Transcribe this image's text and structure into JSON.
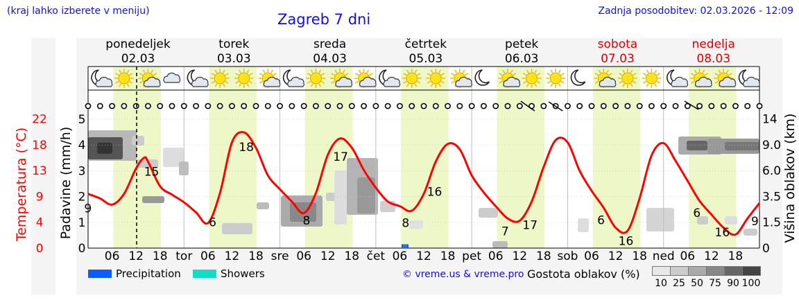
{
  "header": {
    "note": "(kraj lahko izberete v meniju)",
    "title": "Zagreb 7 dni",
    "updated": "Zadnja posodobitev: 02.03.2026 - 12:09"
  },
  "colors": {
    "temperature": "#ff0000",
    "weekday_label": "#000000",
    "weekend_label": "#e00000",
    "daylight_band": "#eef7c8",
    "precipitation": "#0a5cff",
    "showers": "#15dcc4",
    "link_blue": "#1010e0"
  },
  "legend": {
    "items": [
      {
        "label": "Precipitation",
        "color": "#0a5cff"
      },
      {
        "label": "Showers",
        "color": "#15dcc4"
      }
    ],
    "credit": "© vreme.us & vreme.pro",
    "density_label": "Gostota oblakov (%)",
    "density_scale": [
      {
        "label": "10",
        "color": "#e8e8e8"
      },
      {
        "label": "25",
        "color": "#cccccc"
      },
      {
        "label": "50",
        "color": "#aaaaaa"
      },
      {
        "label": "75",
        "color": "#888888"
      },
      {
        "label": "90",
        "color": "#666666"
      },
      {
        "label": "100",
        "color": "#444444"
      }
    ]
  },
  "chart_data": {
    "type": "line",
    "title": "Zagreb 7 dni",
    "days": [
      {
        "name": "ponedeljek",
        "date": "02.03",
        "weekend": false,
        "icons": [
          "moon-cloud",
          "sun",
          "sun-cloud",
          "cloud"
        ]
      },
      {
        "name": "torek",
        "date": "03.03",
        "weekend": false,
        "icons": [
          "moon-cloud",
          "sun",
          "sun",
          "sun-cloud"
        ]
      },
      {
        "name": "sreda",
        "date": "04.03",
        "weekend": false,
        "icons": [
          "moon-cloud",
          "sun",
          "sun-cloud",
          "sun-cloud"
        ]
      },
      {
        "name": "četrtek",
        "date": "05.03",
        "weekend": false,
        "icons": [
          "moon-cloud",
          "sun",
          "sun",
          "sun-cloud"
        ]
      },
      {
        "name": "petek",
        "date": "06.03",
        "weekend": false,
        "icons": [
          "moon",
          "sun-cloud",
          "sun",
          "sun"
        ]
      },
      {
        "name": "sobota",
        "date": "07.03",
        "weekend": true,
        "icons": [
          "moon",
          "sun-cloud",
          "sun",
          "sun"
        ]
      },
      {
        "name": "nedelja",
        "date": "08.03",
        "weekend": true,
        "icons": [
          "moon-cloud",
          "sun-cloud",
          "sun-cloud",
          "moon-cloud"
        ]
      }
    ],
    "x_tick_labels": [
      "06",
      "12",
      "18",
      "tor",
      "06",
      "12",
      "18",
      "sre",
      "06",
      "12",
      "18",
      "čet",
      "06",
      "12",
      "18",
      "pet",
      "06",
      "12",
      "18",
      "sob",
      "06",
      "12",
      "18",
      "ned",
      "06",
      "12",
      "18"
    ],
    "now_marker_hour": 12.15,
    "left_axes": {
      "temperature": {
        "label": "Temperatura (°C)",
        "ticks": [
          "0",
          "4",
          "9",
          "13",
          "18",
          "22"
        ]
      },
      "precipitation": {
        "label": "Padavine (mm/h)",
        "ticks": [
          "0",
          "1",
          "2",
          "3",
          "4",
          "5"
        ],
        "range": [
          0,
          5
        ]
      }
    },
    "right_axis": {
      "label": "Višina oblakov (km)",
      "ticks": [
        "0",
        "1.5",
        "3.5",
        "6.0",
        "9.0",
        "14"
      ]
    },
    "temperature_series": {
      "name": "Temperatura",
      "hours": [
        0,
        3,
        6,
        9,
        12,
        14,
        15,
        18,
        21,
        24,
        27,
        30,
        33,
        36,
        39,
        42,
        45,
        48,
        51,
        54,
        57,
        60,
        63,
        66,
        69,
        72,
        75,
        78,
        81,
        84,
        87,
        90,
        93,
        96,
        99,
        102,
        105,
        108,
        111,
        114,
        117,
        120,
        123,
        126,
        129,
        132,
        135,
        138,
        141,
        144,
        147,
        150,
        153,
        156,
        159,
        162,
        165,
        168
      ],
      "values": [
        10.6,
        10.0,
        9.2,
        10.6,
        13.9,
        15.3,
        14.8,
        11.6,
        10.5,
        9.5,
        8.2,
        6.8,
        10.7,
        17.3,
        18.6,
        16.6,
        13.0,
        11.2,
        9.6,
        8.1,
        10.7,
        15.7,
        17.8,
        16.6,
        13.7,
        11.4,
        9.6,
        9.0,
        8.4,
        10.6,
        14.8,
        17.1,
        16.4,
        13.0,
        10.8,
        9.0,
        7.4,
        7.1,
        9.6,
        14.1,
        17.6,
        17.3,
        13.6,
        11.0,
        8.8,
        6.2,
        5.8,
        10.0,
        15.6,
        17.2,
        14.9,
        12.3,
        9.7,
        7.9,
        6.2,
        5.3,
        7.4,
        9.4
      ]
    },
    "temperature_labels": [
      {
        "hour": 0.3,
        "value": "9"
      },
      {
        "hour": 14.5,
        "value": "15"
      },
      {
        "hour": 31.5,
        "value": "6"
      },
      {
        "hour": 38.2,
        "value": "18"
      },
      {
        "hour": 55,
        "value": "8"
      },
      {
        "hour": 61.8,
        "value": "17"
      },
      {
        "hour": 79.8,
        "value": "8"
      },
      {
        "hour": 85.3,
        "value": "16"
      },
      {
        "hour": 104.7,
        "value": "7"
      },
      {
        "hour": 109.2,
        "value": "17"
      },
      {
        "hour": 128.7,
        "value": "6"
      },
      {
        "hour": 133.2,
        "value": "16"
      },
      {
        "hour": 152.7,
        "value": "6"
      },
      {
        "hour": 157.3,
        "value": "16"
      },
      {
        "hour": 167.2,
        "value": "9"
      }
    ],
    "precipitation_series": {
      "name": "Precipitation",
      "hours": [
        78.7,
        79.3,
        79.9
      ],
      "values": [
        0.15,
        0.15,
        0.15
      ]
    }
  }
}
